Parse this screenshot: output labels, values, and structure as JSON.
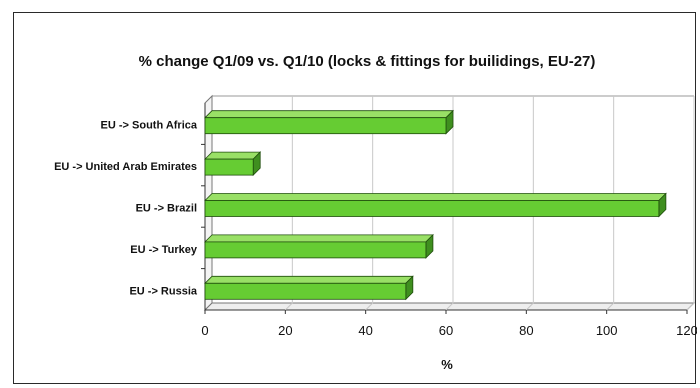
{
  "chart_data": {
    "type": "bar",
    "orientation": "horizontal",
    "title": "% change Q1/09 vs. Q1/10 (locks & fittings for builidings, EU-27)",
    "xlabel": "%",
    "ylabel": "",
    "xlim": [
      0,
      120
    ],
    "xticks": [
      0,
      20,
      40,
      60,
      80,
      100,
      120
    ],
    "grid": true,
    "legend": "none",
    "bar_color": "#66cc33",
    "categories": [
      "EU -> South Africa",
      "EU -> United Arab Emirates",
      "EU -> Brazil",
      "EU -> Turkey",
      "EU -> Russia"
    ],
    "values": [
      60,
      12,
      113,
      55,
      50
    ]
  }
}
